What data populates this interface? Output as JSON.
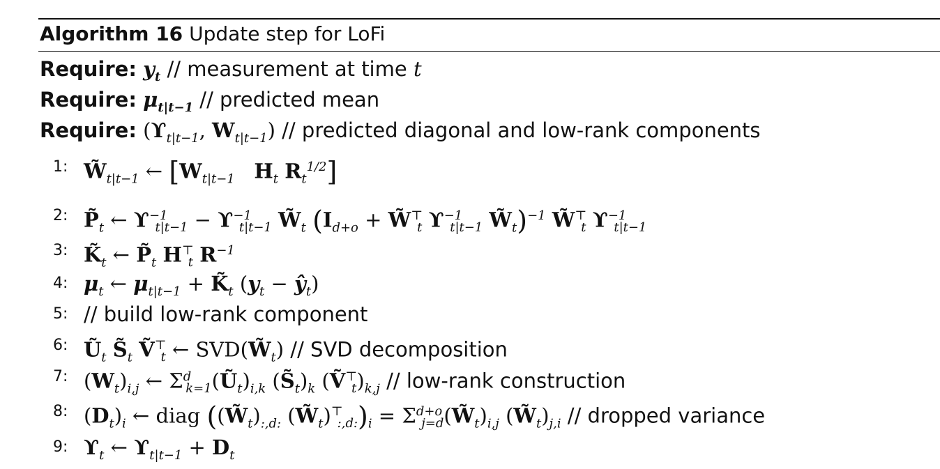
{
  "algorithm": {
    "label": "Algorithm 16",
    "title": "Update step for LoFi"
  },
  "requires": [
    {
      "keyword": "Require:",
      "math": "y_t",
      "comment": "// measurement at time t"
    },
    {
      "keyword": "Require:",
      "math": "μ_{t|t−1}",
      "comment": "// predicted mean"
    },
    {
      "keyword": "Require:",
      "math": "(ϒ_{t|t−1}, W_{t|t−1})",
      "comment": "// predicted diagonal and low-rank components"
    }
  ],
  "steps": [
    {
      "num": "1:",
      "text": "W̃_{t|t−1} ← [W_{t|t−1}  H_t R_t^{1/2}]"
    },
    {
      "num": "2:",
      "text": "P̃_t ← ϒ^{−1}_{t|t−1} − ϒ^{−1}_{t|t−1} W̃_t (I_{d+o} + W̃_t^⊤ ϒ^{−1}_{t|t−1} W̃_t)^{−1} W̃_t^⊤ ϒ^{−1}_{t|t−1}"
    },
    {
      "num": "3:",
      "text": "K̃_t ← P̃_t H_t^⊤ R^{−1}"
    },
    {
      "num": "4:",
      "text": "μ_t ← μ_{t|t−1} + K̃_t (y_t − ŷ_t)"
    },
    {
      "num": "5:",
      "text": "// build low-rank component"
    },
    {
      "num": "6:",
      "text": "Ũ_t S̃_t Ṽ_t^⊤ ← SVD(W̃_t) // SVD decomposition"
    },
    {
      "num": "7:",
      "text": "(W_t)_{i,j} ← Σ_{k=1}^{d} (Ũ_t)_{i,k} (S̃_t)_k (Ṽ_t^⊤)_{k,j} // low-rank construction"
    },
    {
      "num": "8:",
      "text": "(D_t)_i ← diag((W̃_t)_{:,d:} (W̃_t)^⊤_{:,d:})_i = Σ_{j=d}^{d+o} (W̃_t)_{i,j} (W̃_t)_{j,i} // dropped variance"
    },
    {
      "num": "9:",
      "text": "ϒ_t ← ϒ_{t|t−1} + D_t"
    }
  ]
}
